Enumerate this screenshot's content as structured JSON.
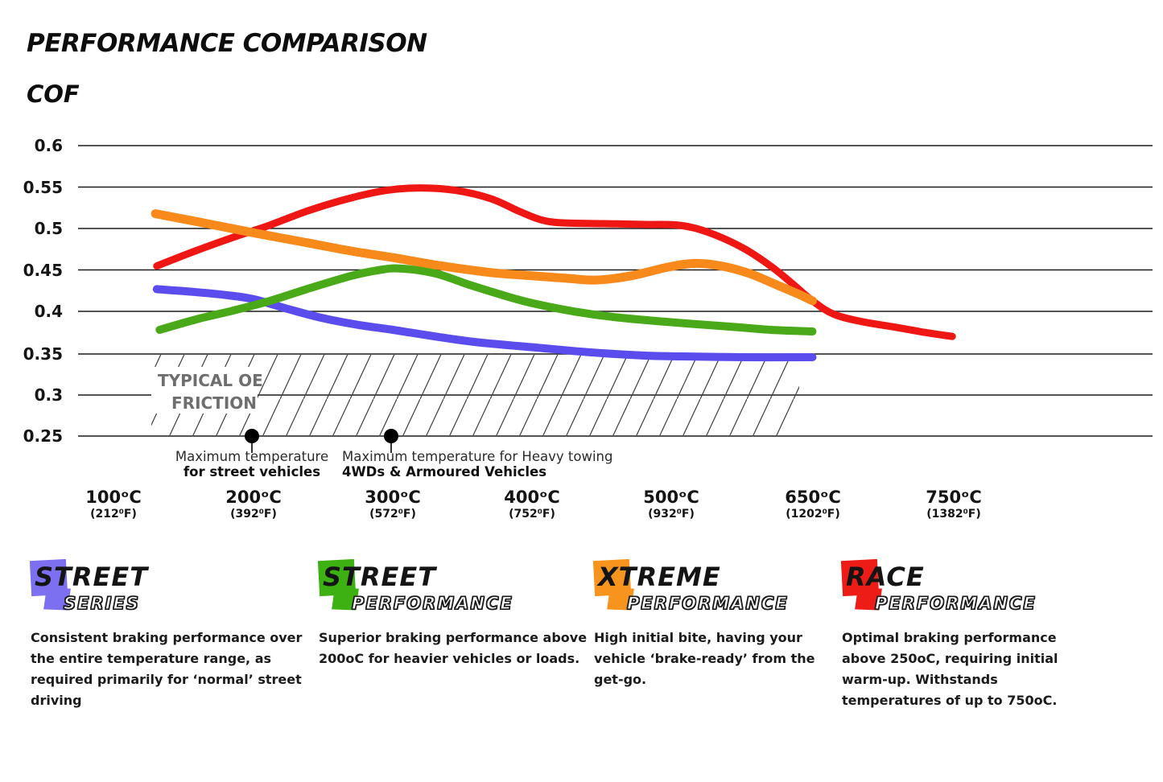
{
  "header": {
    "title": "PERFORMANCE COMPARISON",
    "axis_label": "COF"
  },
  "chart_data": {
    "type": "line",
    "title": "PERFORMANCE COMPARISON",
    "ylabel": "COF",
    "y_range": [
      0.25,
      0.6
    ],
    "y_tick_step": 0.05,
    "grid": true,
    "y_ticks": [
      "0.6",
      "0.55",
      "0.5",
      "0.45",
      "0.4",
      "0.35",
      "0.3",
      "0.25"
    ],
    "x_tick_temps_c": [
      100,
      200,
      300,
      400,
      500,
      650,
      750
    ],
    "x_ticks": [
      {
        "c": "100ᵒC",
        "f": "(212⁰F)"
      },
      {
        "c": "200ᵒC",
        "f": "(392⁰F)"
      },
      {
        "c": "300ᵒC",
        "f": "(572⁰F)"
      },
      {
        "c": "400ᵒC",
        "f": "(752⁰F)"
      },
      {
        "c": "500ᵒC",
        "f": "(932⁰F)"
      },
      {
        "c": "650ᵒC",
        "f": "(1202⁰F)"
      },
      {
        "c": "750ᵒC",
        "f": "(1382⁰F)"
      }
    ],
    "series": [
      {
        "name": "Street Series",
        "color": "#5b4ced",
        "stroke_width": 10,
        "points_temp_cof": [
          [
            131,
            0.427
          ],
          [
            155,
            0.424
          ],
          [
            180,
            0.42
          ],
          [
            200,
            0.415
          ],
          [
            225,
            0.403
          ],
          [
            250,
            0.392
          ],
          [
            275,
            0.384
          ],
          [
            300,
            0.378
          ],
          [
            330,
            0.37
          ],
          [
            360,
            0.363
          ],
          [
            400,
            0.357
          ],
          [
            440,
            0.351
          ],
          [
            480,
            0.347
          ],
          [
            510,
            0.346
          ],
          [
            575,
            0.345
          ],
          [
            650,
            0.345
          ]
        ]
      },
      {
        "name": "Street Performance",
        "color": "#4aa918",
        "stroke_width": 10,
        "points_temp_cof": [
          [
            133,
            0.378
          ],
          [
            160,
            0.391
          ],
          [
            185,
            0.401
          ],
          [
            210,
            0.412
          ],
          [
            240,
            0.428
          ],
          [
            270,
            0.443
          ],
          [
            290,
            0.45
          ],
          [
            305,
            0.452
          ],
          [
            330,
            0.446
          ],
          [
            355,
            0.432
          ],
          [
            380,
            0.419
          ],
          [
            400,
            0.41
          ],
          [
            430,
            0.4
          ],
          [
            460,
            0.393
          ],
          [
            500,
            0.387
          ],
          [
            560,
            0.382
          ],
          [
            605,
            0.378
          ],
          [
            650,
            0.376
          ]
        ]
      },
      {
        "name": "Xtreme Performance",
        "color": "#f8891b",
        "stroke_width": 11,
        "points_temp_cof": [
          [
            130,
            0.518
          ],
          [
            170,
            0.505
          ],
          [
            200,
            0.495
          ],
          [
            235,
            0.484
          ],
          [
            270,
            0.473
          ],
          [
            300,
            0.465
          ],
          [
            335,
            0.455
          ],
          [
            370,
            0.447
          ],
          [
            400,
            0.443
          ],
          [
            425,
            0.44
          ],
          [
            445,
            0.438
          ],
          [
            470,
            0.443
          ],
          [
            495,
            0.453
          ],
          [
            522,
            0.458
          ],
          [
            552,
            0.455
          ],
          [
            582,
            0.446
          ],
          [
            612,
            0.432
          ],
          [
            635,
            0.421
          ],
          [
            650,
            0.413
          ]
        ]
      },
      {
        "name": "Race Performance",
        "color": "#ee1713",
        "stroke_width": 9,
        "points_temp_cof": [
          [
            131,
            0.455
          ],
          [
            160,
            0.474
          ],
          [
            190,
            0.492
          ],
          [
            210,
            0.503
          ],
          [
            240,
            0.522
          ],
          [
            270,
            0.537
          ],
          [
            295,
            0.546
          ],
          [
            320,
            0.549
          ],
          [
            345,
            0.546
          ],
          [
            370,
            0.536
          ],
          [
            390,
            0.521
          ],
          [
            405,
            0.511
          ],
          [
            420,
            0.507
          ],
          [
            450,
            0.506
          ],
          [
            480,
            0.505
          ],
          [
            507,
            0.504
          ],
          [
            537,
            0.496
          ],
          [
            575,
            0.477
          ],
          [
            605,
            0.455
          ],
          [
            627,
            0.435
          ],
          [
            650,
            0.413
          ],
          [
            665,
            0.397
          ],
          [
            685,
            0.388
          ],
          [
            710,
            0.381
          ],
          [
            730,
            0.375
          ],
          [
            750,
            0.37
          ]
        ]
      }
    ],
    "oe_friction": {
      "line1": "TYPICAL OE",
      "line2": "FRICTION",
      "band_cof": [
        0.25,
        0.35
      ]
    },
    "annotations": [
      {
        "temp_c": 200,
        "line1": "Maximum temperature",
        "line2": "for street vehicles"
      },
      {
        "temp_c": 300,
        "line1": "Maximum temperature for Heavy towing",
        "line2": "4WDs & Armoured Vehicles"
      }
    ]
  },
  "legend": {
    "items": [
      {
        "word1": "STREET",
        "word2": "SERIES",
        "color": "#7c6ff0",
        "description": "Consistent braking performance over the entire temperature range, as required primarily for ‘normal’ street driving"
      },
      {
        "word1": "STREET",
        "word2": "PERFORMANCE",
        "color": "#3db012",
        "description": "Superior braking performance above 200oC for heavier vehicles or loads."
      },
      {
        "word1": "XTREME",
        "word2": "PERFORMANCE",
        "color": "#f7941d",
        "description": "High initial bite, having your vehicle ‘brake-ready’ from the get-go."
      },
      {
        "word1": "RACE",
        "word2": "PERFORMANCE",
        "color": "#ed1c16",
        "description": "Optimal braking performance above 250oC, requiring initial warm-up. Withstands temperatures of up to 750oC."
      }
    ]
  }
}
